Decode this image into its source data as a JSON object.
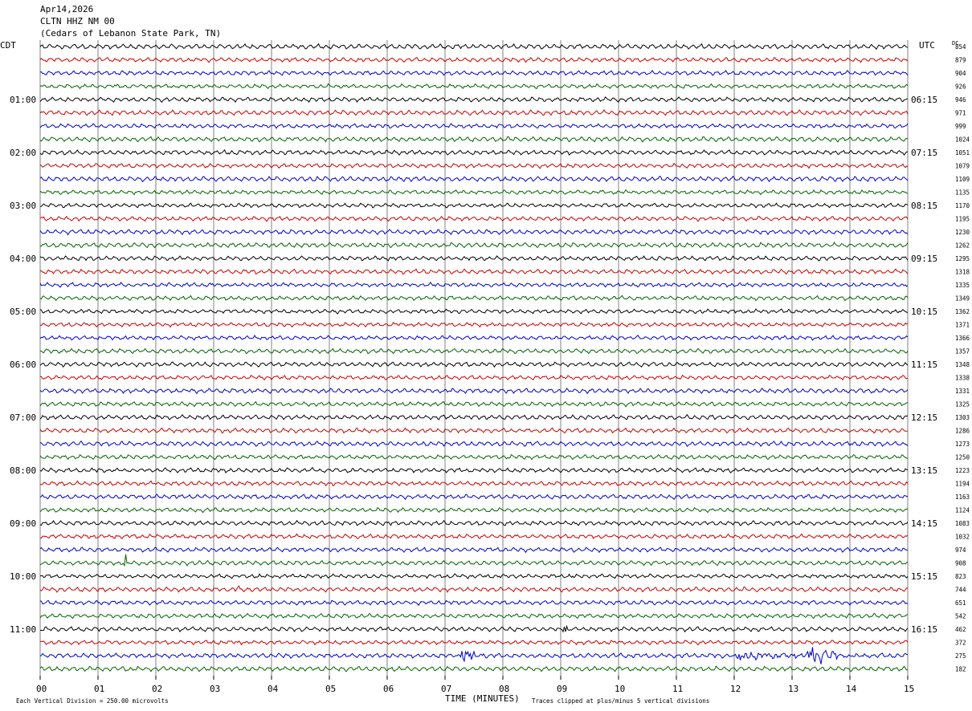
{
  "header": {
    "date": "Apr14,2026",
    "station": "CLTN HHZ NM 00",
    "location": "(Cedars of Lebanon State Park, TN)"
  },
  "left_zone": "CDT",
  "right_zone": "UTC",
  "dc_label": "DC",
  "footer": {
    "left": "Each Vertical Division =  250.00 microvolts",
    "center": "TIME (MINUTES)",
    "right": "Traces clipped at plus/minus 5 vertical divisions"
  },
  "colors": {
    "trace_cycle": [
      "#000000",
      "#cc0000",
      "#0000cc",
      "#006400"
    ],
    "grid": "#808080"
  },
  "chart_data": {
    "type": "helicorder",
    "xlabel": "TIME (MINUTES)",
    "xlim": [
      0,
      15
    ],
    "x_ticks": [
      "00",
      "01",
      "02",
      "03",
      "04",
      "05",
      "06",
      "07",
      "08",
      "09",
      "10",
      "11",
      "12",
      "13",
      "14",
      "15"
    ],
    "minutes_per_line": 15,
    "lines_per_hour": 4,
    "left_hour_labels": [
      "01:00",
      "02:00",
      "03:00",
      "04:00",
      "05:00",
      "06:00",
      "07:00",
      "08:00",
      "09:00",
      "10:00",
      "11:00"
    ],
    "right_hour_labels": [
      "06:15",
      "07:15",
      "08:15",
      "09:15",
      "10:15",
      "11:15",
      "12:15",
      "13:15",
      "14:15",
      "15:15",
      "16:15"
    ],
    "dc_offsets": [
      854,
      879,
      904,
      926,
      946,
      971,
      999,
      1024,
      1051,
      1079,
      1109,
      1135,
      1170,
      1195,
      1230,
      1262,
      1295,
      1318,
      1335,
      1349,
      1362,
      1371,
      1366,
      1357,
      1348,
      1338,
      1331,
      1325,
      1303,
      1286,
      1273,
      1250,
      1223,
      1194,
      1163,
      1124,
      1083,
      1032,
      974,
      908,
      823,
      744,
      651,
      542,
      462,
      372,
      275,
      182
    ],
    "events": [
      {
        "line": 39,
        "minute": 1.45,
        "amplitude": 3.5,
        "duration": 0.1
      },
      {
        "line": 41,
        "minute": 3.35,
        "amplitude": 1.2,
        "duration": 0.35
      },
      {
        "line": 42,
        "minute": 10.45,
        "amplitude": 0.9,
        "duration": 0.06
      },
      {
        "line": 44,
        "minute": 9.07,
        "amplitude": 3.0,
        "duration": 0.12
      },
      {
        "line": 46,
        "minute": 7.3,
        "amplitude": 1.5,
        "duration": 0.6
      },
      {
        "line": 46,
        "minute": 12.0,
        "amplitude": 0.8,
        "duration": 3.0
      },
      {
        "line": 46,
        "minute": 13.25,
        "amplitude": 2.8,
        "duration": 1.0
      },
      {
        "line": 47,
        "minute": 2.5,
        "amplitude": 1.0,
        "duration": 0.08
      }
    ]
  }
}
